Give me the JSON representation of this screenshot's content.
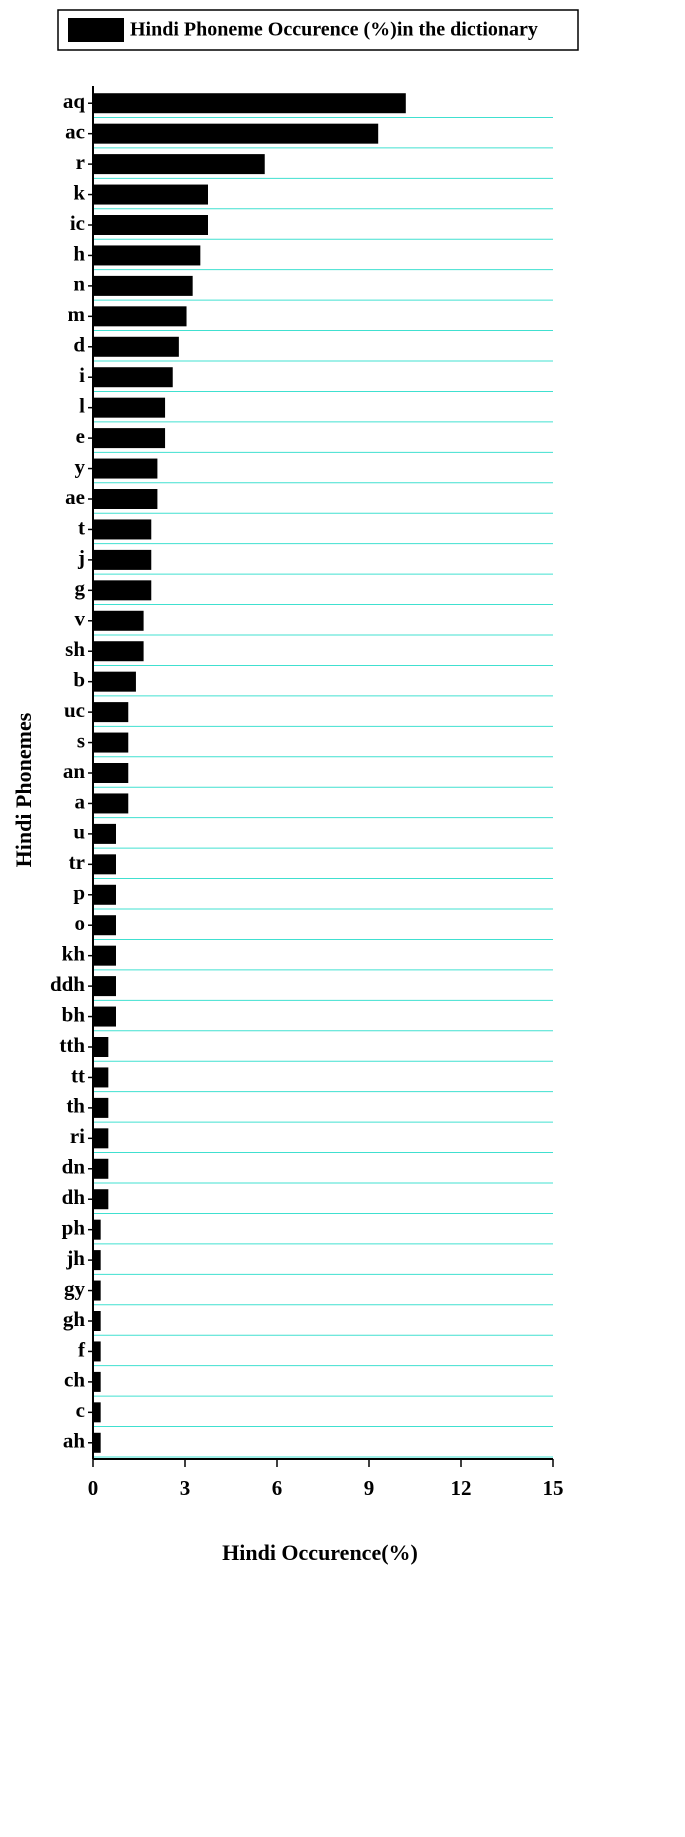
{
  "chart_data": {
    "type": "hbar",
    "x_label": "Hindi Occurence(%)",
    "y_label": "Hindi Phonemes",
    "categories": [
      "aq",
      "ac",
      "r",
      "k",
      "ic",
      "h",
      "n",
      "m",
      "d",
      "i",
      "l",
      "e",
      "y",
      "ae",
      "t",
      "j",
      "g",
      "v",
      "sh",
      "b",
      "uc",
      "s",
      "an",
      "a",
      "u",
      "tr",
      "p",
      "o",
      "kh",
      "ddh",
      "bh",
      "tth",
      "tt",
      "th",
      "ri",
      "dn",
      "dh",
      "ph",
      "jh",
      "gy",
      "gh",
      "f",
      "ch",
      "c",
      "ah"
    ],
    "series": [
      {
        "name": "Hindi Phoneme Occurence (%)in the dictionary",
        "color": "#000000",
        "values": [
          10.2,
          9.3,
          5.6,
          3.75,
          3.75,
          3.5,
          3.25,
          3.05,
          2.8,
          2.6,
          2.35,
          2.35,
          2.1,
          2.1,
          1.9,
          1.9,
          1.9,
          1.65,
          1.65,
          1.4,
          1.15,
          1.15,
          1.15,
          1.15,
          0.75,
          0.75,
          0.75,
          0.75,
          0.75,
          0.75,
          0.75,
          0.5,
          0.5,
          0.5,
          0.5,
          0.5,
          0.5,
          0.25,
          0.25,
          0.25,
          0.25,
          0.25,
          0.25,
          0.25,
          0.25
        ]
      }
    ],
    "xlim": [
      0,
      15
    ],
    "xticks": [
      0,
      3,
      6,
      9,
      12,
      15
    ],
    "grid": true,
    "grid_color": "#40e0d0",
    "legend": "top"
  }
}
